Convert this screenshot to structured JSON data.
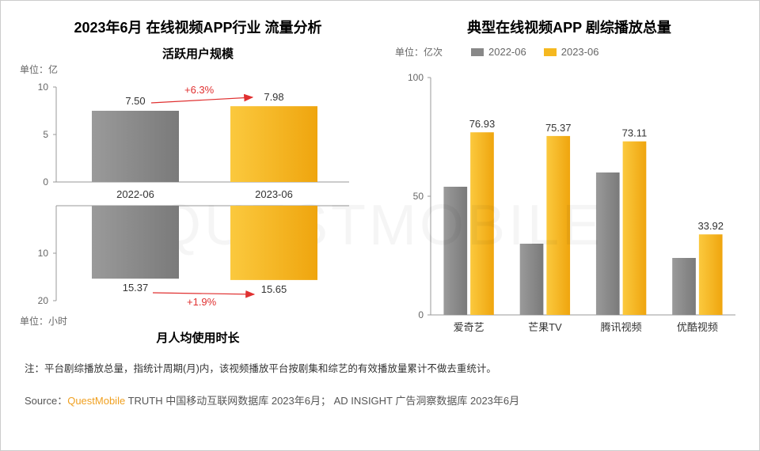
{
  "left": {
    "title": "2023年6月 在线视频APP行业 流量分析",
    "top_chart": {
      "type": "bar",
      "subtitle": "活跃用户规模",
      "unit_label": "单位：亿",
      "categories": [
        "2022-06",
        "2023-06"
      ],
      "values": [
        7.5,
        7.98
      ],
      "value_labels": [
        "7.50",
        "7.98"
      ],
      "bar_colors": [
        "#888888",
        "#f5b820"
      ],
      "ylim": [
        0,
        10
      ],
      "yticks": [
        0,
        5,
        10
      ],
      "axis_color": "#999999",
      "delta_label": "+6.3%",
      "delta_color": "#e03030",
      "arrow_color": "#e03030"
    },
    "bottom_chart": {
      "type": "bar-inverted",
      "subtitle": "月人均使用时长",
      "unit_label": "单位：小时",
      "categories": [
        "2022-06",
        "2023-06"
      ],
      "values": [
        15.37,
        15.65
      ],
      "value_labels": [
        "15.37",
        "15.65"
      ],
      "bar_colors": [
        "#888888",
        "#f5b820"
      ],
      "ylim": [
        0,
        20
      ],
      "yticks": [
        10,
        20
      ],
      "axis_color": "#999999",
      "delta_label": "+1.9%",
      "delta_color": "#e03030",
      "arrow_color": "#e03030"
    }
  },
  "right": {
    "title": "典型在线视频APP 剧综播放总量",
    "unit_label": "单位：亿次",
    "legend": [
      {
        "label": "2022-06",
        "color": "#888888"
      },
      {
        "label": "2023-06",
        "color": "#f5b820"
      }
    ],
    "chart": {
      "type": "grouped-bar",
      "categories": [
        "爱奇艺",
        "芒果TV",
        "腾讯视频",
        "优酷视频"
      ],
      "series": [
        {
          "name": "2022-06",
          "color": "#888888",
          "values": [
            54,
            30,
            60,
            24
          ]
        },
        {
          "name": "2023-06",
          "color": "#f5b820",
          "values": [
            76.93,
            75.37,
            73.11,
            33.92
          ]
        }
      ],
      "value_labels_2023": [
        "76.93",
        "75.37",
        "73.11",
        "33.92"
      ],
      "ylim": [
        0,
        100
      ],
      "yticks": [
        0,
        50,
        100
      ],
      "axis_color": "#999999",
      "background_color": "#ffffff",
      "bar_width": 0.35,
      "label_fontsize": 13
    }
  },
  "footnote": "注：平台剧综播放总量，指统计周期(月)内，该视频播放平台按剧集和综艺的有效播放量累计不做去重统计。",
  "source_prefix": "Source：",
  "source_brand": "QuestMobile",
  "source_rest": " TRUTH 中国移动互联网数据库 2023年6月； AD INSIGHT 广告洞察数据库 2023年6月",
  "watermark": "QUESTMOBILE"
}
